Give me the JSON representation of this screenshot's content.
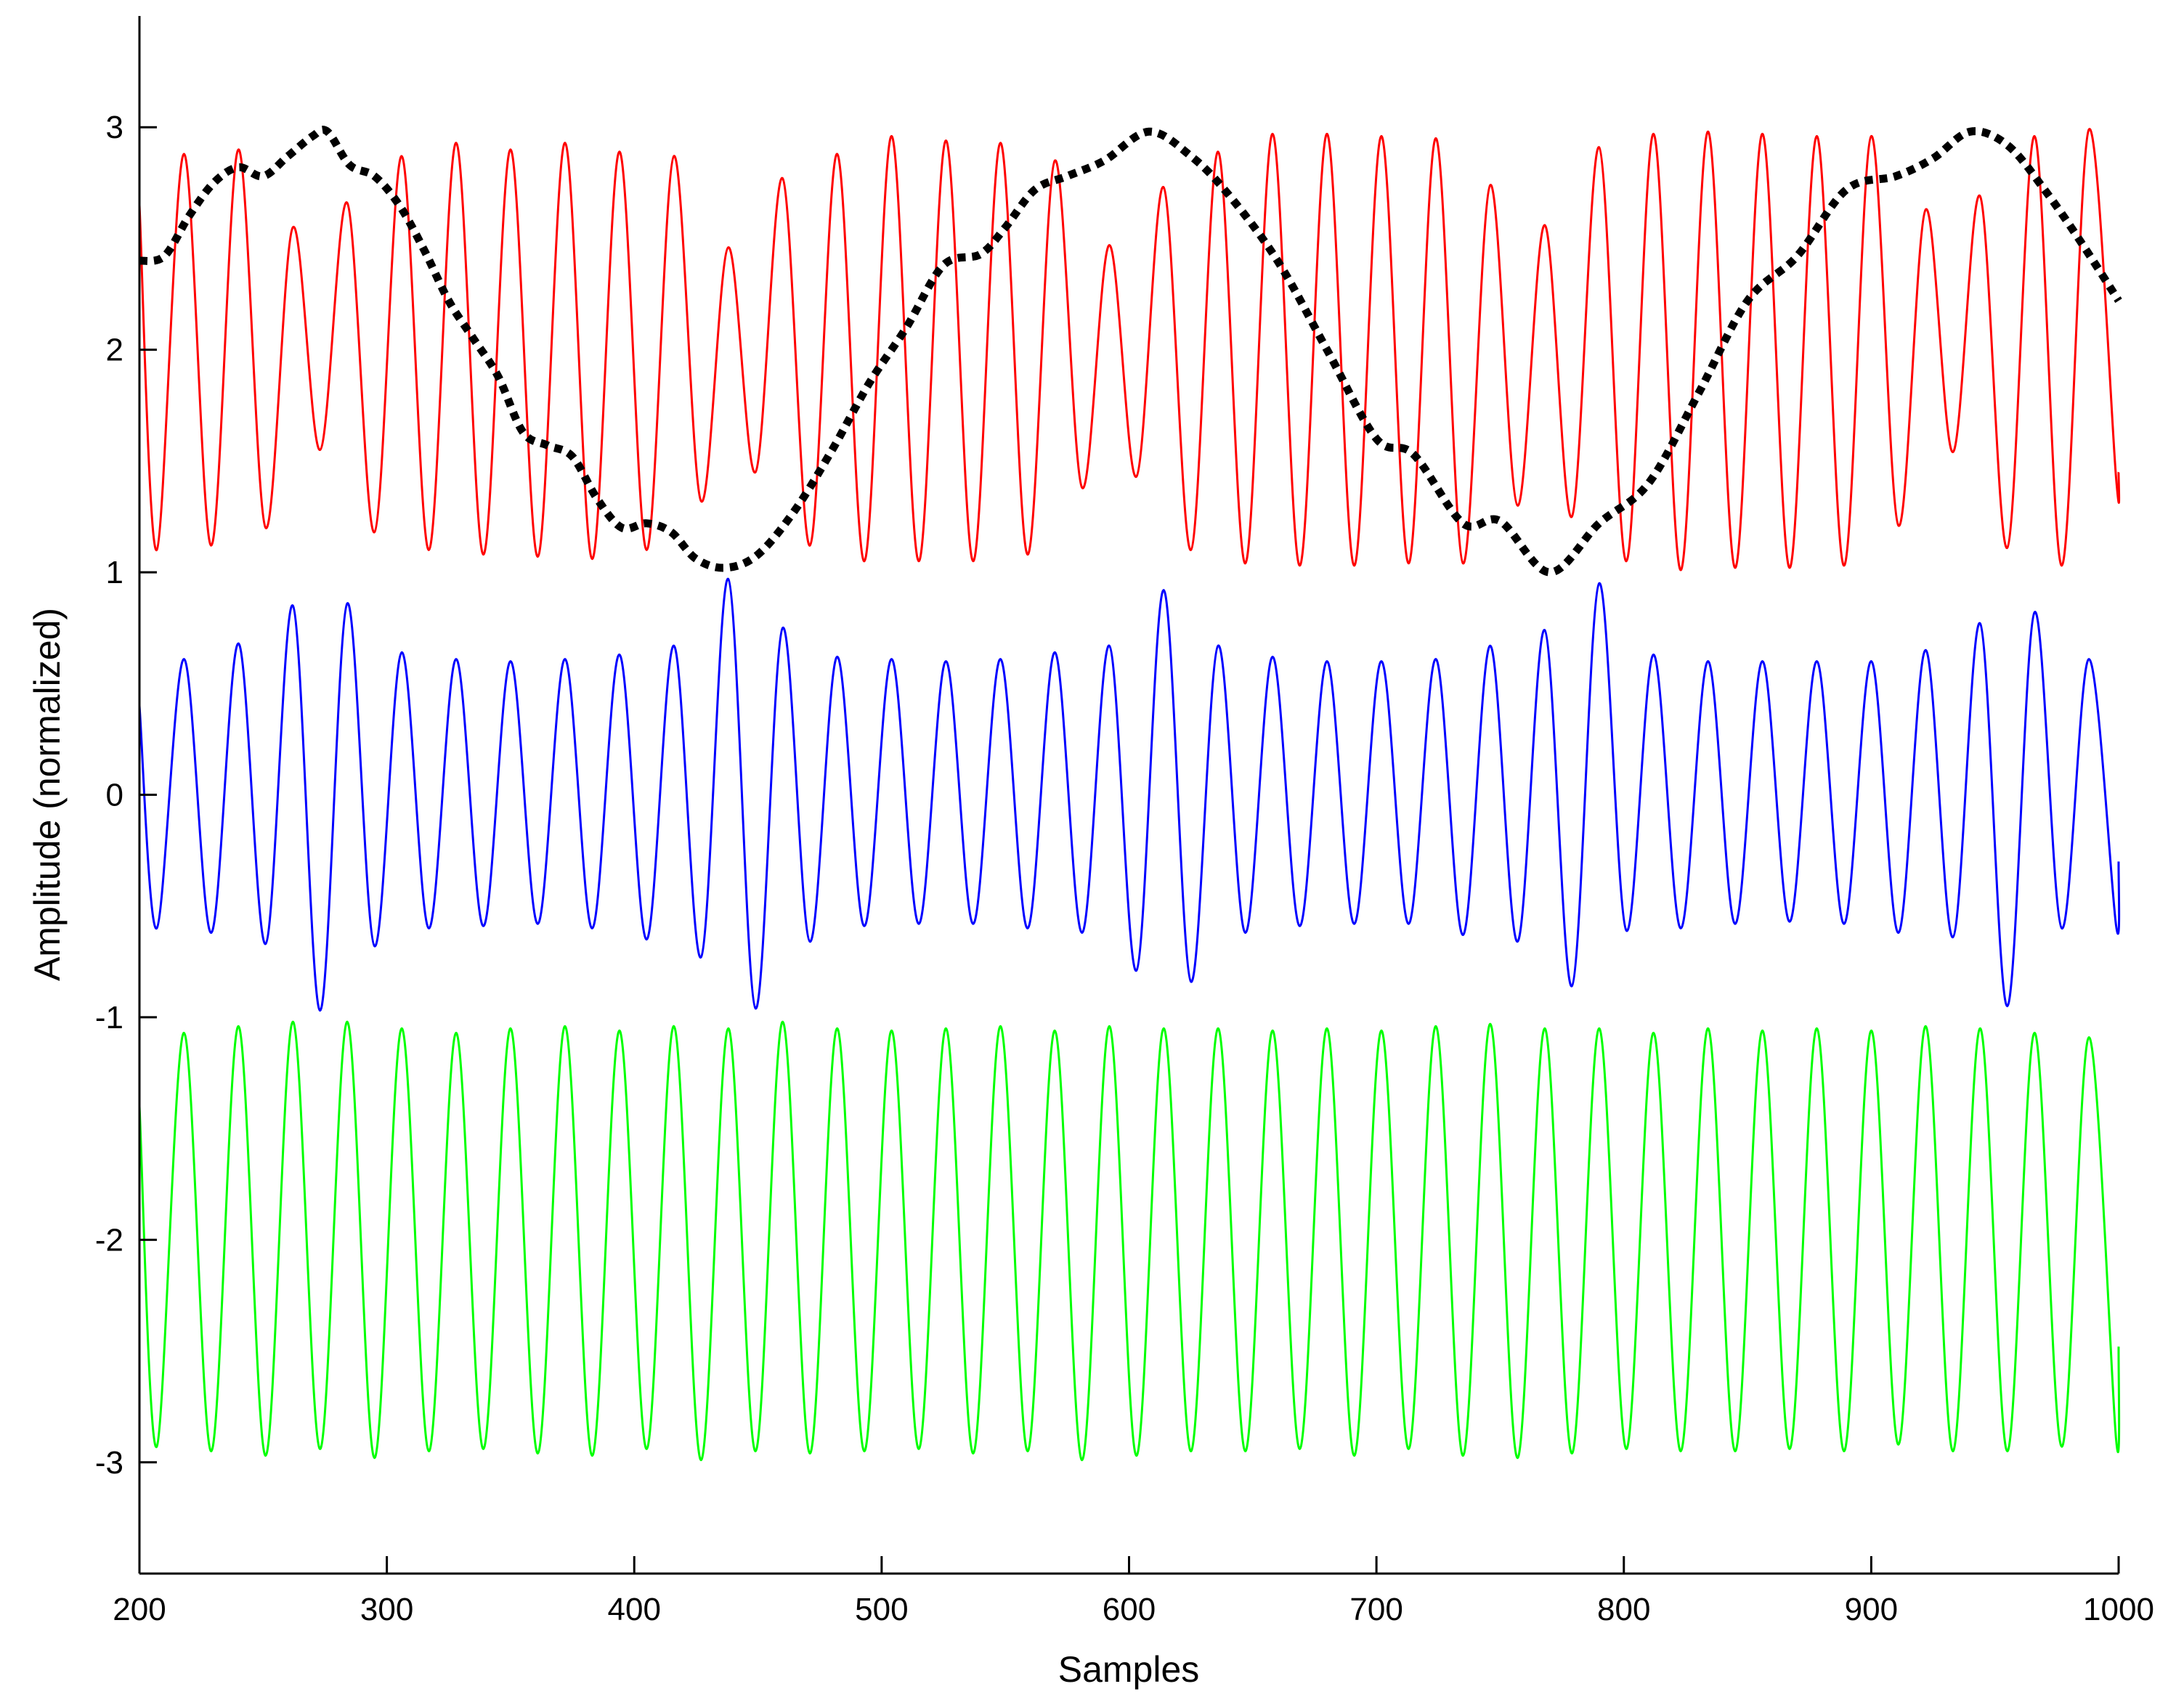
{
  "chart_data": {
    "type": "line",
    "title": "",
    "xlabel": "Samples",
    "ylabel": "Amplitude (normalized)",
    "xlim": [
      200,
      1000
    ],
    "ylim": [
      -3.5,
      3.5
    ],
    "xticks": [
      200,
      300,
      400,
      500,
      600,
      700,
      800,
      900,
      1000
    ],
    "yticks": [
      -3,
      -2,
      -1,
      0,
      1,
      2,
      3
    ],
    "grid": false,
    "legend": "none",
    "series": [
      {
        "color": "#ff0000",
        "style": "solid",
        "x": [
          200,
          207,
          218,
          229,
          240,
          251,
          262,
          273,
          284,
          295,
          306,
          317,
          328,
          339,
          350,
          361,
          372,
          383,
          394,
          405,
          416,
          427,
          438,
          449,
          460,
          471,
          482,
          493,
          504,
          515,
          526,
          537,
          548,
          559,
          570,
          581,
          592,
          603,
          614,
          625,
          636,
          647,
          658,
          669,
          680,
          691,
          702,
          713,
          724,
          735,
          746,
          757,
          768,
          779,
          790,
          801,
          812,
          823,
          834,
          845,
          856,
          867,
          878,
          889,
          900,
          911,
          922,
          933,
          944,
          955,
          966,
          977,
          988,
          999,
          1000
        ],
        "y": [
          2.65,
          1.1,
          2.88,
          1.12,
          2.9,
          1.2,
          2.55,
          1.55,
          2.66,
          1.18,
          2.87,
          1.1,
          2.93,
          1.08,
          2.9,
          1.07,
          2.93,
          1.06,
          2.89,
          1.1,
          2.87,
          1.32,
          2.46,
          1.45,
          2.77,
          1.12,
          2.88,
          1.05,
          2.96,
          1.05,
          2.94,
          1.05,
          2.93,
          1.08,
          2.85,
          1.38,
          2.47,
          1.43,
          2.73,
          1.1,
          2.89,
          1.04,
          2.97,
          1.03,
          2.97,
          1.03,
          2.96,
          1.04,
          2.95,
          1.04,
          2.74,
          1.3,
          2.56,
          1.25,
          2.91,
          1.05,
          2.97,
          1.01,
          2.98,
          1.02,
          2.97,
          1.02,
          2.96,
          1.03,
          2.96,
          1.21,
          2.63,
          1.54,
          2.69,
          1.11,
          2.96,
          1.03,
          2.99,
          1.42,
          1.45
        ]
      },
      {
        "color": "#0000ff",
        "style": "solid",
        "x": [
          200,
          207,
          218,
          229,
          240,
          251,
          262,
          273,
          284,
          295,
          306,
          317,
          328,
          339,
          350,
          361,
          372,
          383,
          394,
          405,
          416,
          427,
          438,
          449,
          460,
          471,
          482,
          493,
          504,
          515,
          526,
          537,
          548,
          559,
          570,
          581,
          592,
          603,
          614,
          625,
          636,
          647,
          658,
          669,
          680,
          691,
          702,
          713,
          724,
          735,
          746,
          757,
          768,
          779,
          790,
          801,
          812,
          823,
          834,
          845,
          856,
          867,
          878,
          889,
          900,
          911,
          922,
          933,
          944,
          955,
          966,
          977,
          988,
          999,
          1000
        ],
        "y": [
          0.4,
          -0.6,
          0.61,
          -0.62,
          0.68,
          -0.67,
          0.85,
          -0.97,
          0.86,
          -0.68,
          0.64,
          -0.6,
          0.61,
          -0.59,
          0.6,
          -0.58,
          0.61,
          -0.6,
          0.63,
          -0.65,
          0.67,
          -0.73,
          0.97,
          -0.96,
          0.75,
          -0.66,
          0.62,
          -0.59,
          0.61,
          -0.58,
          0.6,
          -0.58,
          0.61,
          -0.6,
          0.64,
          -0.62,
          0.67,
          -0.79,
          0.92,
          -0.84,
          0.67,
          -0.62,
          0.62,
          -0.59,
          0.6,
          -0.58,
          0.6,
          -0.58,
          0.61,
          -0.63,
          0.67,
          -0.66,
          0.74,
          -0.86,
          0.95,
          -0.61,
          0.63,
          -0.6,
          0.6,
          -0.58,
          0.6,
          -0.57,
          0.6,
          -0.58,
          0.6,
          -0.62,
          0.65,
          -0.64,
          0.77,
          -0.95,
          0.82,
          -0.6,
          0.61,
          -0.59,
          -0.3
        ]
      },
      {
        "color": "#00ff00",
        "style": "solid",
        "x": [
          200,
          207,
          218,
          229,
          240,
          251,
          262,
          273,
          284,
          295,
          306,
          317,
          328,
          339,
          350,
          361,
          372,
          383,
          394,
          405,
          416,
          427,
          438,
          449,
          460,
          471,
          482,
          493,
          504,
          515,
          526,
          537,
          548,
          559,
          570,
          581,
          592,
          603,
          614,
          625,
          636,
          647,
          658,
          669,
          680,
          691,
          702,
          713,
          724,
          735,
          746,
          757,
          768,
          779,
          790,
          801,
          812,
          823,
          834,
          845,
          856,
          867,
          878,
          889,
          900,
          911,
          922,
          933,
          944,
          955,
          966,
          977,
          988,
          999,
          1000
        ],
        "y": [
          -1.4,
          -2.93,
          -1.07,
          -2.95,
          -1.04,
          -2.97,
          -1.02,
          -2.94,
          -1.02,
          -2.98,
          -1.05,
          -2.95,
          -1.07,
          -2.94,
          -1.05,
          -2.96,
          -1.04,
          -2.97,
          -1.06,
          -2.94,
          -1.04,
          -2.99,
          -1.05,
          -2.95,
          -1.02,
          -2.96,
          -1.05,
          -2.95,
          -1.06,
          -2.94,
          -1.05,
          -2.96,
          -1.04,
          -2.95,
          -1.06,
          -2.99,
          -1.04,
          -2.97,
          -1.05,
          -2.95,
          -1.05,
          -2.95,
          -1.06,
          -2.94,
          -1.05,
          -2.97,
          -1.06,
          -2.94,
          -1.04,
          -2.97,
          -1.03,
          -2.98,
          -1.05,
          -2.96,
          -1.05,
          -2.94,
          -1.07,
          -2.95,
          -1.05,
          -2.95,
          -1.06,
          -2.94,
          -1.05,
          -2.95,
          -1.06,
          -2.92,
          -1.04,
          -2.95,
          -1.05,
          -2.95,
          -1.07,
          -2.93,
          -1.09,
          -2.9,
          -2.48
        ]
      },
      {
        "color": "#000000",
        "style": "dotted",
        "x": [
          200,
          210,
          220,
          230,
          240,
          250,
          260,
          270,
          276,
          285,
          295,
          305,
          315,
          325,
          335,
          345,
          355,
          365,
          375,
          385,
          395,
          405,
          415,
          425,
          437,
          450,
          465,
          480,
          495,
          510,
          525,
          540,
          550,
          562,
          575,
          590,
          608,
          625,
          640,
          660,
          680,
          700,
          715,
          735,
          750,
          770,
          790,
          810,
          830,
          850,
          870,
          890,
          910,
          925,
          940,
          955,
          970,
          985,
          1000
        ],
        "y": [
          2.4,
          2.42,
          2.6,
          2.75,
          2.82,
          2.78,
          2.87,
          2.96,
          2.98,
          2.83,
          2.78,
          2.65,
          2.45,
          2.22,
          2.05,
          1.88,
          1.63,
          1.57,
          1.52,
          1.33,
          1.2,
          1.22,
          1.18,
          1.06,
          1.02,
          1.08,
          1.28,
          1.55,
          1.85,
          2.1,
          2.38,
          2.43,
          2.55,
          2.72,
          2.78,
          2.85,
          2.98,
          2.87,
          2.7,
          2.4,
          2.0,
          1.6,
          1.53,
          1.22,
          1.23,
          1.0,
          1.22,
          1.4,
          1.8,
          2.22,
          2.42,
          2.72,
          2.78,
          2.86,
          2.98,
          2.92,
          2.72,
          2.48,
          2.22
        ]
      }
    ]
  }
}
